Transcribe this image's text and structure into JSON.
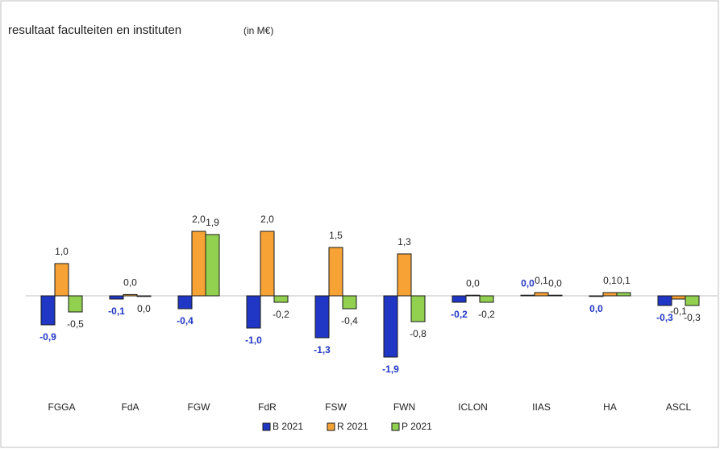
{
  "chart_data": {
    "type": "bar",
    "title": "resultaat faculteiten en instituten",
    "subtitle": "(in M€)",
    "categories": [
      "FGGA",
      "FdA",
      "FGW",
      "FdR",
      "FSW",
      "FWN",
      "ICLON",
      "IIAS",
      "HA",
      "ASCL"
    ],
    "series": [
      {
        "name": "B 2021",
        "color": "#2036c4",
        "values": [
          -0.9,
          -0.1,
          -0.4,
          -1.0,
          -1.3,
          -1.9,
          -0.2,
          0.02,
          -0.02,
          -0.3
        ],
        "value_labels": [
          "-0,9",
          "-0,1",
          "-0,4",
          "-1,0",
          "-1,3",
          "-1,9",
          "-0,2",
          "0,0",
          "0,0",
          "-0,3"
        ]
      },
      {
        "name": "R 2021",
        "color": "#f7a234",
        "values": [
          1.0,
          0.04,
          2.0,
          2.0,
          1.5,
          1.3,
          0.02,
          0.1,
          0.1,
          -0.1
        ],
        "value_labels": [
          "1,0",
          "0,0",
          "2,0",
          "2,0",
          "1,5",
          "1,3",
          "0,0",
          "0,1",
          "0,1",
          "-0,1"
        ]
      },
      {
        "name": "P 2021",
        "color": "#92d050",
        "values": [
          -0.5,
          -0.02,
          1.9,
          -0.2,
          -0.4,
          -0.8,
          -0.2,
          0.02,
          0.1,
          -0.3
        ],
        "value_labels": [
          "-0,5",
          "0,0",
          "1,9",
          "-0,2",
          "-0,4",
          "-0,8",
          "-0,2",
          "0,0",
          "0,1",
          "-0,3"
        ]
      }
    ]
  }
}
